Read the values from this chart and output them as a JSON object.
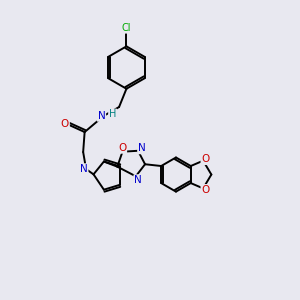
{
  "background_color": "#e8e8f0",
  "bond_color": "#000000",
  "bond_lw": 1.4,
  "atom_colors": {
    "N": "#0000cc",
    "O": "#cc0000",
    "H": "#008080",
    "Cl": "#00aa00"
  },
  "figsize": [
    3.0,
    3.0
  ],
  "dpi": 100
}
